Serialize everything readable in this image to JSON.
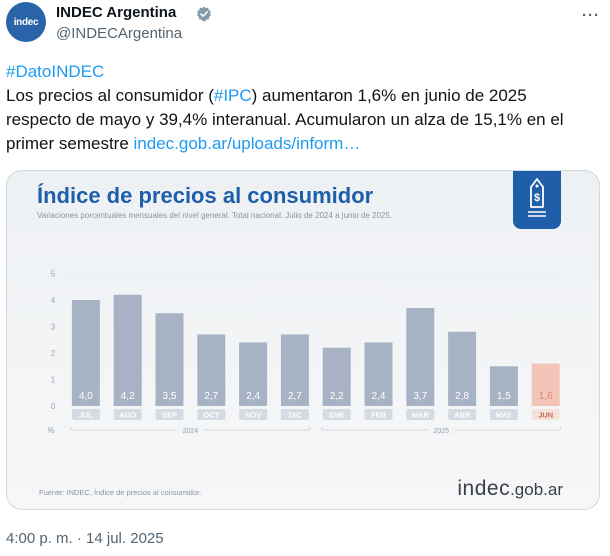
{
  "author": {
    "display_name": "INDEC Argentina",
    "handle": "@INDECArgentina",
    "avatar_text": "indec"
  },
  "tweet": {
    "hashtag_datoindec": "#DatoINDEC",
    "line2_a": "Los precios al consumidor (",
    "hashtag_ipc": "#IPC",
    "line2_b": ") aumentaron 1,6% en junio de 2025",
    "line3": "respecto de mayo y 39,4% interanual. Acumularon un alza de 15,1% en el",
    "line4_a": "primer semestre ",
    "link": "indec.gob.ar/uploads/inform…"
  },
  "card": {
    "title": "Índice de precios al consumidor",
    "subtitle": "Variaciones porcentuales mensuales del nivel general. Total nacional. Julio de 2024 a junio de 2025.",
    "source": "Fuente: INDEC, Índice de precios al consumidor.",
    "logo_main": "indec",
    "logo_suffix": ".gob.ar"
  },
  "chart_data": {
    "type": "bar",
    "categories": [
      "JUL",
      "AGO",
      "SEP",
      "OCT",
      "NOV",
      "DIC",
      "ENE",
      "FEB",
      "MAR",
      "ABR",
      "MAY",
      "JUN"
    ],
    "values": [
      4.0,
      4.2,
      3.5,
      2.7,
      2.4,
      2.7,
      2.2,
      2.4,
      3.7,
      2.8,
      1.5,
      1.6
    ],
    "value_labels": [
      "4,0",
      "4,2",
      "3,5",
      "2,7",
      "2,4",
      "2,7",
      "2,2",
      "2,4",
      "3,7",
      "2,8",
      "1,5",
      "1,6"
    ],
    "y_ticks": [
      "0",
      "1",
      "2",
      "3",
      "4",
      "5"
    ],
    "ylim": [
      0,
      5
    ],
    "ylabel": "%",
    "year_groups": [
      {
        "label": "2024",
        "from": 0,
        "to": 5
      },
      {
        "label": "2025",
        "from": 6,
        "to": 11
      }
    ],
    "colors": {
      "bar": "#a7b3c4",
      "highlight": "#f3c5b8",
      "highlight_label": "#d98a72",
      "label": "#ffffff",
      "tick": "#9aa3ad"
    },
    "highlight_index": 11,
    "grid": true
  },
  "timestamp": "4:00 p. m. · 14 jul. 2025"
}
